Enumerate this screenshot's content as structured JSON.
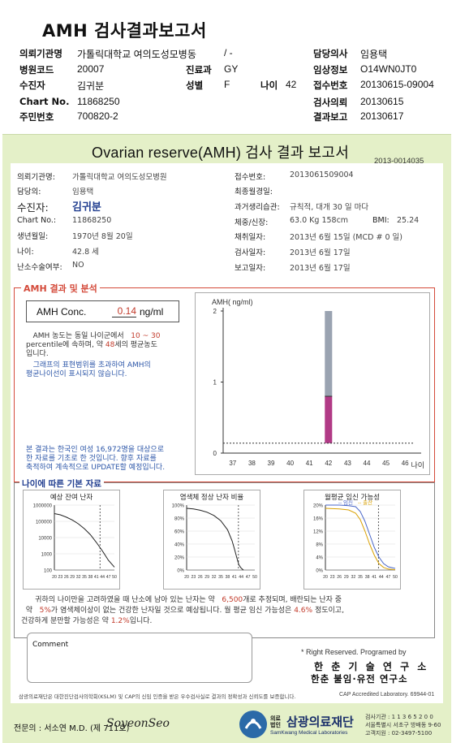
{
  "header": {
    "title": "AMH 검사결과보고서",
    "rows": [
      {
        "l1": "의뢰기관명",
        "v1": "가톨릭대학교 여의도성모병동",
        "v1b": "/ -",
        "l3": "담당의사",
        "v3": "임용택"
      },
      {
        "l1": "병원코드",
        "v1": "20007",
        "l2": "진료과",
        "v2": "GY",
        "l3": "임상정보",
        "v3": "O14WN0JT0"
      },
      {
        "l1": "수진자",
        "v1": "김귀분",
        "l2": "성별",
        "v2": "F",
        "l2b": "나이",
        "v2b": "42",
        "l3": "접수번호",
        "v3": "20130615-09004"
      },
      {
        "l1": "Chart No.",
        "v1": "11868250",
        "l3": "검사의뢰",
        "v3": "20130615"
      },
      {
        "l1": "주민번호",
        "v1": "700820-2",
        "l3": "결과보고",
        "v3": "20130617"
      }
    ]
  },
  "report": {
    "title": "Ovarian reserve(AMH) 검사 결과 보고서",
    "number": "2013-0014035",
    "info_left": [
      {
        "label": "의뢰기관명:",
        "value": "가톨릭대학교 여의도성모병원"
      },
      {
        "label": "담당의:",
        "value": "임용택"
      },
      {
        "label": "수진자:",
        "value": "김귀분"
      },
      {
        "label": "Chart No.:",
        "value": "11868250"
      },
      {
        "label": "생년월일:",
        "value": "1970년 8월 20일"
      },
      {
        "label": "나이:",
        "value": "42.8 세"
      },
      {
        "label": "난소수술여부:",
        "value": "NO"
      }
    ],
    "info_right": [
      {
        "label": "접수번호:",
        "value": "2013061509004"
      },
      {
        "label": "최종월경일:",
        "value": ""
      },
      {
        "label": "과거생리습관:",
        "value": "규칙적, 대개  30 일 마다"
      },
      {
        "label": "체중/신장:",
        "value": "63.0 Kg   158cm",
        "extra_label": "BMI:",
        "extra_value": "25.24"
      },
      {
        "label": "채취일자:",
        "value": "2013년 6월 15일   (MCD # 0 일)"
      },
      {
        "label": "검사일자:",
        "value": "2013년 6월 17일"
      },
      {
        "label": "보고일자:",
        "value": "2013년 6월 17일"
      }
    ]
  },
  "amh": {
    "section_title": "AMH 결과 및 분석",
    "conc_label": "AMH Conc.",
    "conc_value": "0.14",
    "conc_unit": "ng/ml",
    "desc1_a": "AMH 농도는 동일 나이군에서",
    "desc1_r1": "10 ~ 30",
    "desc1_b": "percentile에 속하며, 약",
    "desc1_r2": "48",
    "desc1_c": "세의 평균농도",
    "desc1_d": "입니다.",
    "desc2_a": "그래프의 표현범위를 초과하여 AMH의",
    "desc2_b": "평균나이선이 표시되지 않습니다.",
    "note_a": "본 결과는 한국인 여성 16,972명을 대상으로",
    "note_b": "한 자료를 기초로 한 것입니다. 향후 자료를",
    "note_c": "축적하여 계속적으로 UPDATE할 예정입니다."
  },
  "chart_data": [
    {
      "type": "bar",
      "title": "",
      "ylabel": "AMH( ng/ml)",
      "xlabel": "나이",
      "x_ticks": [
        37,
        38,
        39,
        40,
        41,
        42,
        43,
        44,
        45,
        46
      ],
      "y_ticks": [
        0,
        1,
        2
      ],
      "ylim": [
        0,
        2
      ],
      "range_bar": {
        "x": 42,
        "low": 0.14,
        "mid": 0.8,
        "high": 2.0
      },
      "reference_line": 0.14,
      "colors": {
        "upper": "#9aa3b1",
        "lower": "#b13a86",
        "reference": "#333333"
      }
    },
    {
      "type": "line",
      "title": "예상 잔여 난자",
      "y_ticks": [
        "1000000",
        "100000",
        "10000",
        "1000",
        "100"
      ],
      "y_scale": "log",
      "x_ticks": [
        20,
        23,
        26,
        29,
        32,
        35,
        38,
        41,
        44,
        47,
        50
      ],
      "marker_x": 42.8,
      "x": [
        20,
        23,
        26,
        29,
        32,
        35,
        38,
        41,
        44,
        47,
        50
      ],
      "y": [
        300000,
        250000,
        180000,
        120000,
        70000,
        35000,
        15000,
        5000,
        1500,
        400,
        150
      ]
    },
    {
      "type": "line",
      "title": "염색체 정상 난자 비율",
      "y_ticks": [
        "100%",
        "80%",
        "60%",
        "40%",
        "20%",
        "0%"
      ],
      "x_ticks": [
        20,
        23,
        26,
        29,
        32,
        35,
        38,
        41,
        44,
        47,
        50
      ],
      "marker_x": 42.8,
      "x": [
        20,
        23,
        26,
        29,
        32,
        35,
        38,
        40,
        41,
        42,
        43,
        44,
        45
      ],
      "y": [
        95,
        94,
        92,
        89,
        84,
        76,
        62,
        45,
        33,
        20,
        8,
        3,
        0
      ]
    },
    {
      "type": "line",
      "title": "월평균 임신 가능성",
      "legend": [
        "임신",
        "출산"
      ],
      "y_ticks": [
        "20%",
        "16%",
        "12%",
        "8%",
        "4%",
        "0%"
      ],
      "x_ticks": [
        20,
        23,
        26,
        29,
        32,
        35,
        38,
        41,
        44,
        47,
        50
      ],
      "marker_x": 42.8,
      "series": [
        {
          "name": "임신",
          "x": [
            20,
            26,
            30,
            33,
            35,
            37,
            39,
            41,
            43,
            45,
            47,
            50
          ],
          "y": [
            20,
            20,
            19.8,
            19.5,
            18,
            15,
            11,
            7,
            4,
            2,
            1,
            0.5
          ],
          "color": "#4a67c8"
        },
        {
          "name": "출산",
          "x": [
            20,
            26,
            30,
            33,
            35,
            37,
            39,
            41,
            43,
            45,
            47,
            50
          ],
          "y": [
            19,
            18.8,
            18.5,
            17.5,
            15.5,
            12,
            8,
            4.6,
            2,
            0.8,
            0.3,
            0.1
          ],
          "color": "#d9a000"
        }
      ]
    }
  ],
  "basic": {
    "section_title": "나이에 따른 기본 자료",
    "summary_a": "귀하의 나이만을 고려하였을 때 난소에 남아 있는 난자는 약",
    "summary_r1": "6,500",
    "summary_b": "개로 추정되며, 배란되는 난자 중",
    "summary_c": "약",
    "summary_r2": "5%",
    "summary_d": "가 염색체이상이 없는 건강한 난자일 것으로 예상됩니다. 월 평균 임신 가능성은",
    "summary_r3": "4.6%",
    "summary_e": "정도이고,",
    "summary_f": "건강하게 분만할 가능성은 약",
    "summary_r4": "1.2%",
    "summary_g": "입니다."
  },
  "footer": {
    "comment_label": "Comment",
    "rights": "* Right Reserved. Programed by",
    "lab_line1": "한 춘 기 술 연 구 소",
    "lab_line2": "한춘 불임·유전 연구소",
    "cert": "삼광의료재단은 대한진단검사의학회(KSLM) 및 CAP의 신임 인증을 받은 우수검사실로 결과의 정확성과 신뢰도를 보증합니다.",
    "cap": "CAP  Accredited  Laboratory.  69944-01",
    "signer": "전문의 : 서소연 M.D. (제 711호)",
    "signature": "SoyeonSeo",
    "logo_small_1": "의료",
    "logo_small_2": "법인",
    "org_name": "삼광의료재단",
    "org_en": "SamKwang Medical Laboratories",
    "addr1": "검사기관 : 1 1 3 6 5 2 0 0",
    "addr2": "서울특별시 서초구 방배동 9-60",
    "addr3": "고객지원 : 02-3497-5100"
  }
}
